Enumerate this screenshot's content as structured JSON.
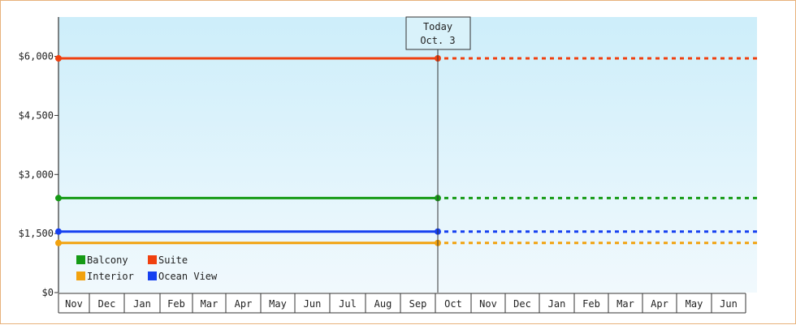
{
  "chart_data": {
    "type": "line",
    "title": "",
    "xlabel": "",
    "ylabel": "",
    "ylim": [
      0,
      7000
    ],
    "yticks": [
      0,
      1500,
      3000,
      4500,
      6000
    ],
    "ytick_labels": [
      "$0",
      "$1,500",
      "$3,000",
      "$4,500",
      "$6,000"
    ],
    "categories": [
      "Nov",
      "Dec",
      "Jan",
      "Feb",
      "Mar",
      "Apr",
      "May",
      "Jun",
      "Jul",
      "Aug",
      "Sep",
      "Oct",
      "Nov",
      "Dec",
      "Jan",
      "Feb",
      "Mar",
      "Apr",
      "May",
      "Jun"
    ],
    "today_label": [
      "Today",
      "Oct. 3"
    ],
    "series": [
      {
        "name": "Balcony",
        "color": "#159a15",
        "value": 2400
      },
      {
        "name": "Suite",
        "color": "#f0400f",
        "value": 5950
      },
      {
        "name": "Interior",
        "color": "#f2a20f",
        "value": 1260
      },
      {
        "name": "Ocean View",
        "color": "#1640f0",
        "value": 1550
      }
    ],
    "historical_range": [
      "Nov",
      "Oct"
    ],
    "projected_style": "dotted",
    "grid": false,
    "legend_position": "bottom-left"
  }
}
